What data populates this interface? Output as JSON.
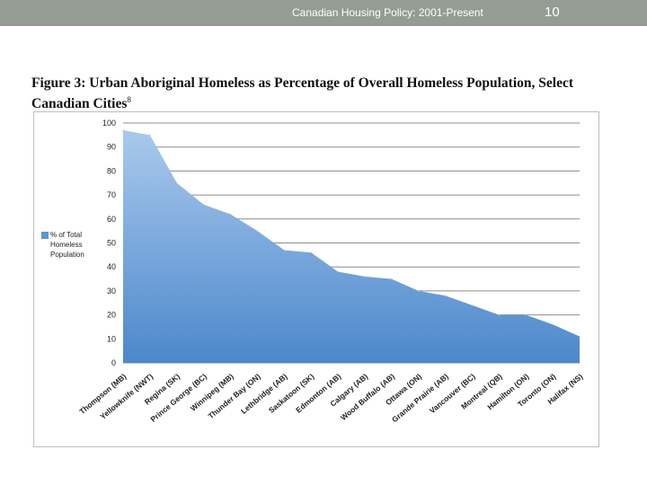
{
  "header": {
    "title": "Canadian Housing Policy:  2001-Present",
    "page_number": "10"
  },
  "colors": {
    "header_bg": "#949c94",
    "area_top": "#a9c9ec",
    "area_bottom": "#4c88cc",
    "grid": "#8c8c8c"
  },
  "chart_data": {
    "type": "area",
    "title": "Figure 3: Urban Aboriginal Homeless as Percentage of Overall Homeless Population, Select Canadian Cities",
    "title_main": "Figure 3: Urban Aboriginal Homeless as Percentage of Overall Homeless Population, Select Canadian Cities",
    "title_superscript": "8",
    "xlabel": "",
    "ylabel": "",
    "ylim": [
      0,
      100
    ],
    "yticks": [
      "0",
      "10",
      "20",
      "30",
      "40",
      "50",
      "60",
      "70",
      "80",
      "90",
      "100"
    ],
    "grid": true,
    "legend_position": "left",
    "categories": [
      "Thompson (MB)",
      "Yellowknife (NWT)",
      "Regina (SK)",
      "Prince George (BC)",
      "Winnipeg (MB)",
      "Thunder Bay (ON)",
      "Lethbridge (AB)",
      "Saskatoon (SK)",
      "Edmonton (AB)",
      "Calgary (AB)",
      "Wood Buffalo (AB)",
      "Ottawa (ON)",
      "Grande Prairie (AB)",
      "Vancouver (BC)",
      "Montreal (QB)",
      "Hamilton (ON)",
      "Toronto (ON)",
      "Halifax (NS)"
    ],
    "series": [
      {
        "name": "% of Total Homeless Population",
        "values": [
          97,
          95,
          75,
          66,
          62,
          55,
          47,
          46,
          38,
          36,
          35,
          30,
          28,
          24,
          20,
          20,
          16,
          11
        ]
      }
    ]
  }
}
